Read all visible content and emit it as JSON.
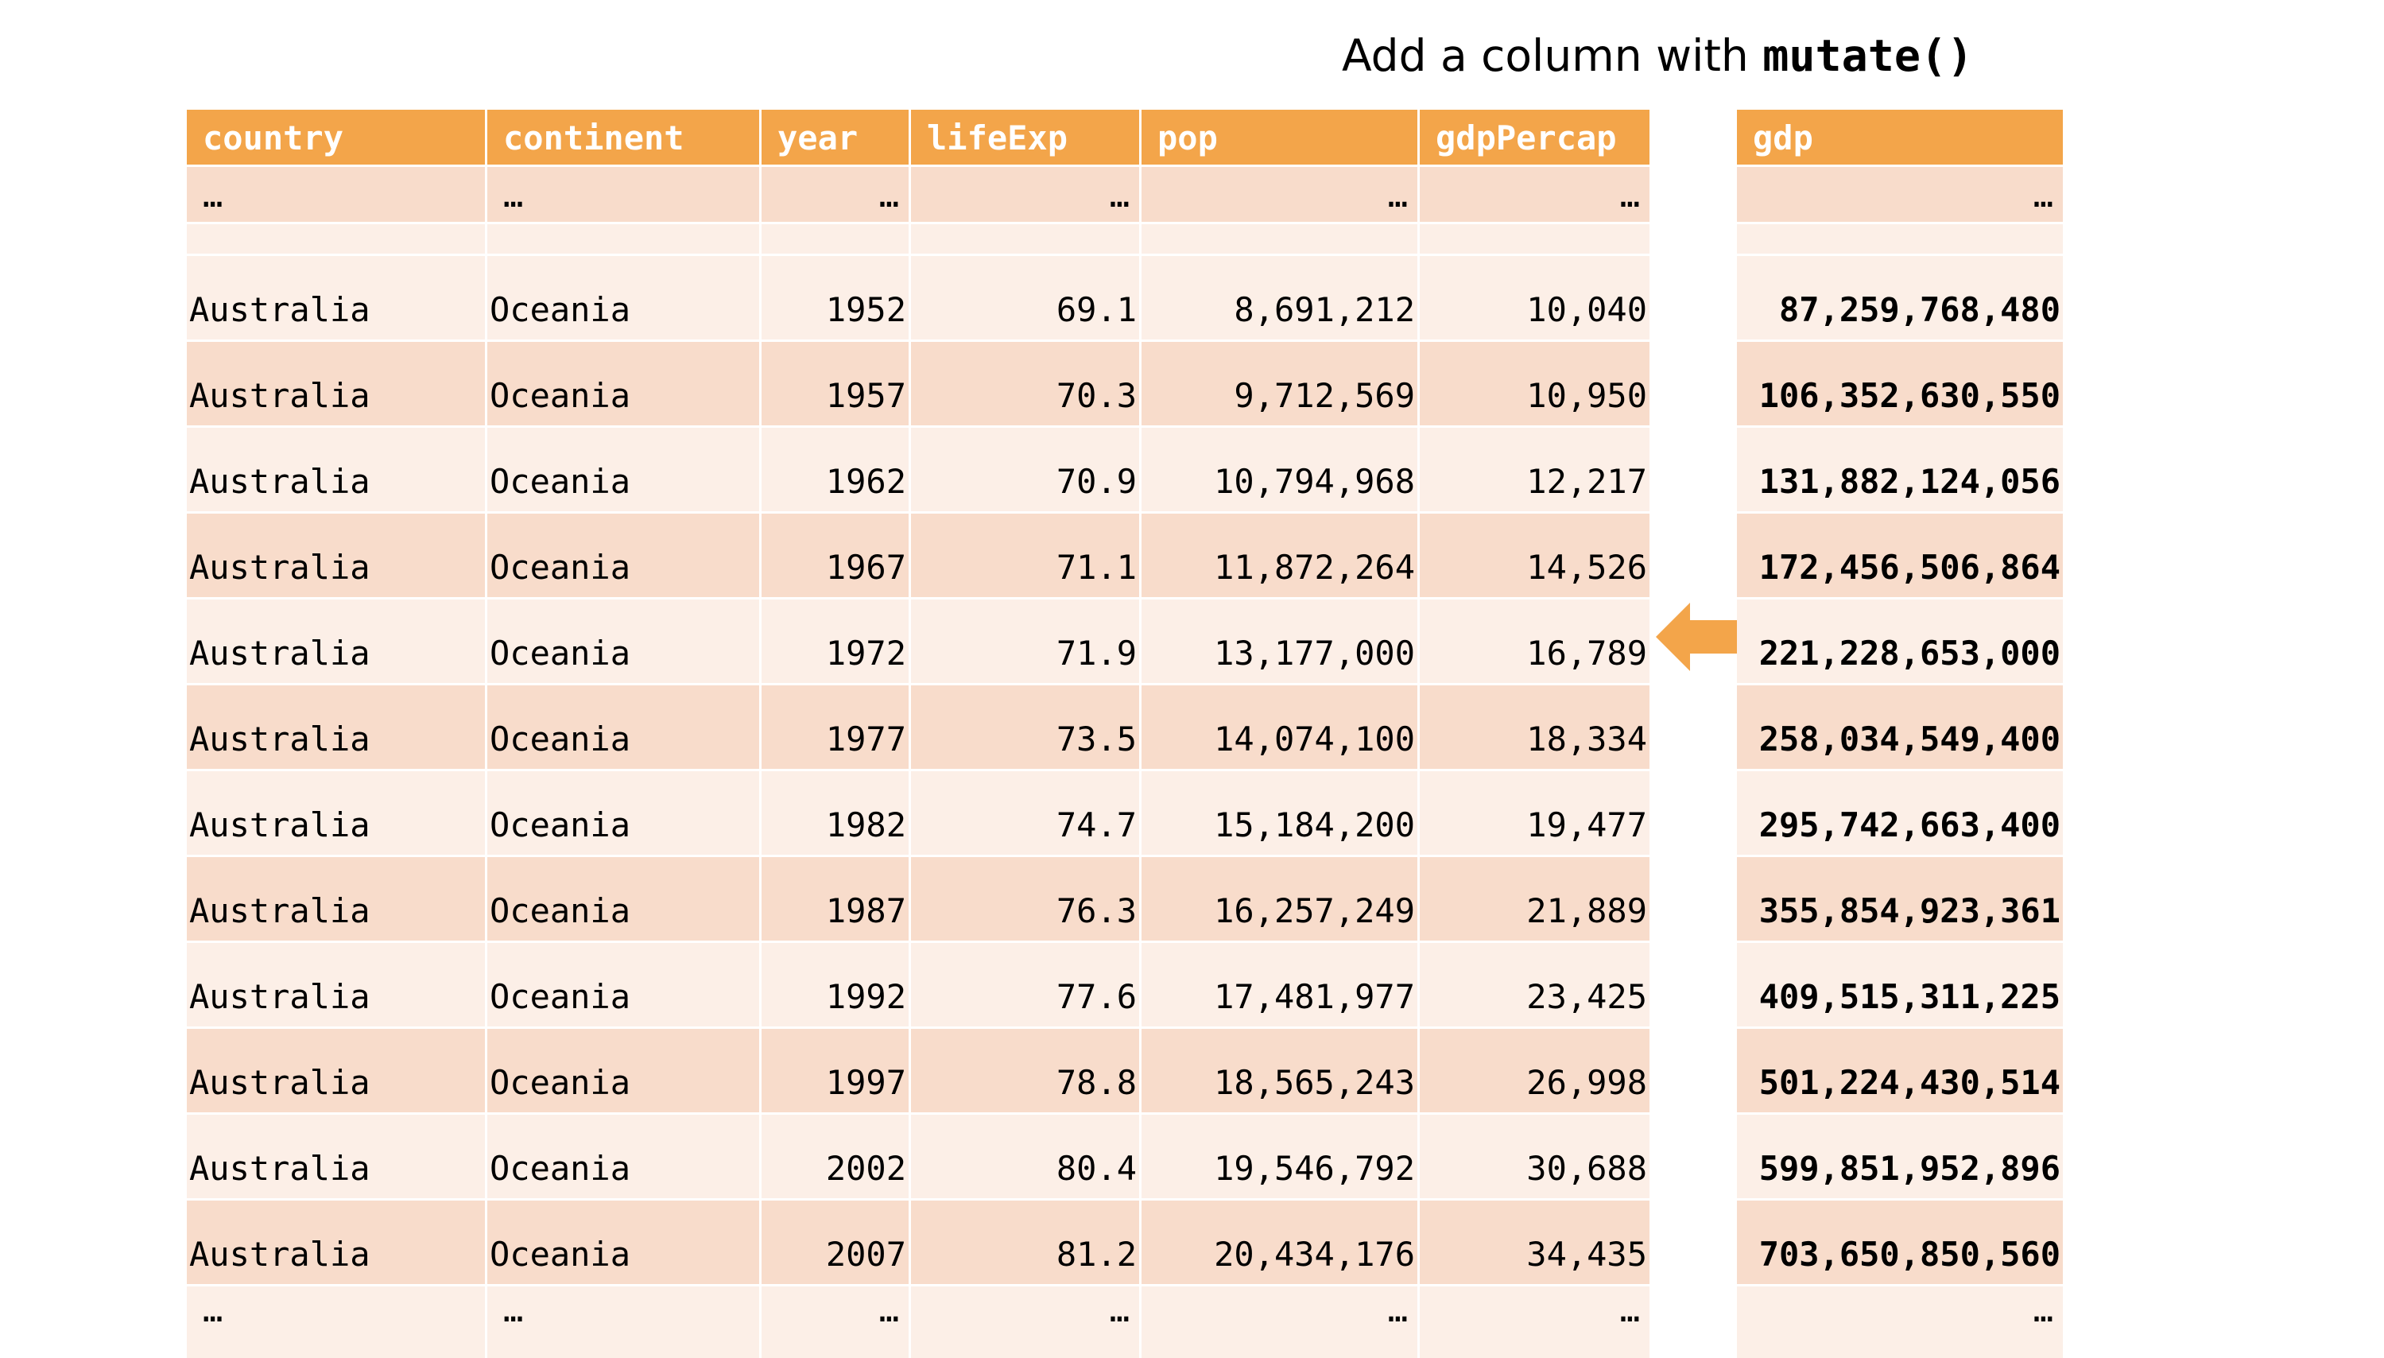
{
  "title": {
    "prefix": "Add a column with ",
    "code": "mutate()"
  },
  "left_table": {
    "headers": [
      "country",
      "continent",
      "year",
      "lifeExp",
      "pop",
      "gdpPercap"
    ],
    "ellipsis": "…",
    "rows": [
      [
        "Australia",
        "Oceania",
        "1952",
        "69.1",
        "8,691,212",
        "10,040"
      ],
      [
        "Australia",
        "Oceania",
        "1957",
        "70.3",
        "9,712,569",
        "10,950"
      ],
      [
        "Australia",
        "Oceania",
        "1962",
        "70.9",
        "10,794,968",
        "12,217"
      ],
      [
        "Australia",
        "Oceania",
        "1967",
        "71.1",
        "11,872,264",
        "14,526"
      ],
      [
        "Australia",
        "Oceania",
        "1972",
        "71.9",
        "13,177,000",
        "16,789"
      ],
      [
        "Australia",
        "Oceania",
        "1977",
        "73.5",
        "14,074,100",
        "18,334"
      ],
      [
        "Australia",
        "Oceania",
        "1982",
        "74.7",
        "15,184,200",
        "19,477"
      ],
      [
        "Australia",
        "Oceania",
        "1987",
        "76.3",
        "16,257,249",
        "21,889"
      ],
      [
        "Australia",
        "Oceania",
        "1992",
        "77.6",
        "17,481,977",
        "23,425"
      ],
      [
        "Australia",
        "Oceania",
        "1997",
        "78.8",
        "18,565,243",
        "26,998"
      ],
      [
        "Australia",
        "Oceania",
        "2002",
        "80.4",
        "19,546,792",
        "30,688"
      ],
      [
        "Australia",
        "Oceania",
        "2007",
        "81.2",
        "20,434,176",
        "34,435"
      ]
    ]
  },
  "right_table": {
    "header": "gdp",
    "ellipsis": "…",
    "values": [
      "87,259,768,480",
      "106,352,630,550",
      "131,882,124,056",
      "172,456,506,864",
      "221,228,653,000",
      "258,034,549,400",
      "295,742,663,400",
      "355,854,923,361",
      "409,515,311,225",
      "501,224,430,514",
      "599,851,952,896",
      "703,650,850,560"
    ]
  },
  "colors": {
    "header_bg": "#f3a54a",
    "row_light": "#fcefe7",
    "row_dark": "#f8dccb",
    "arrow": "#f3a54a"
  },
  "icons": {
    "arrow": "left-arrow-icon"
  }
}
